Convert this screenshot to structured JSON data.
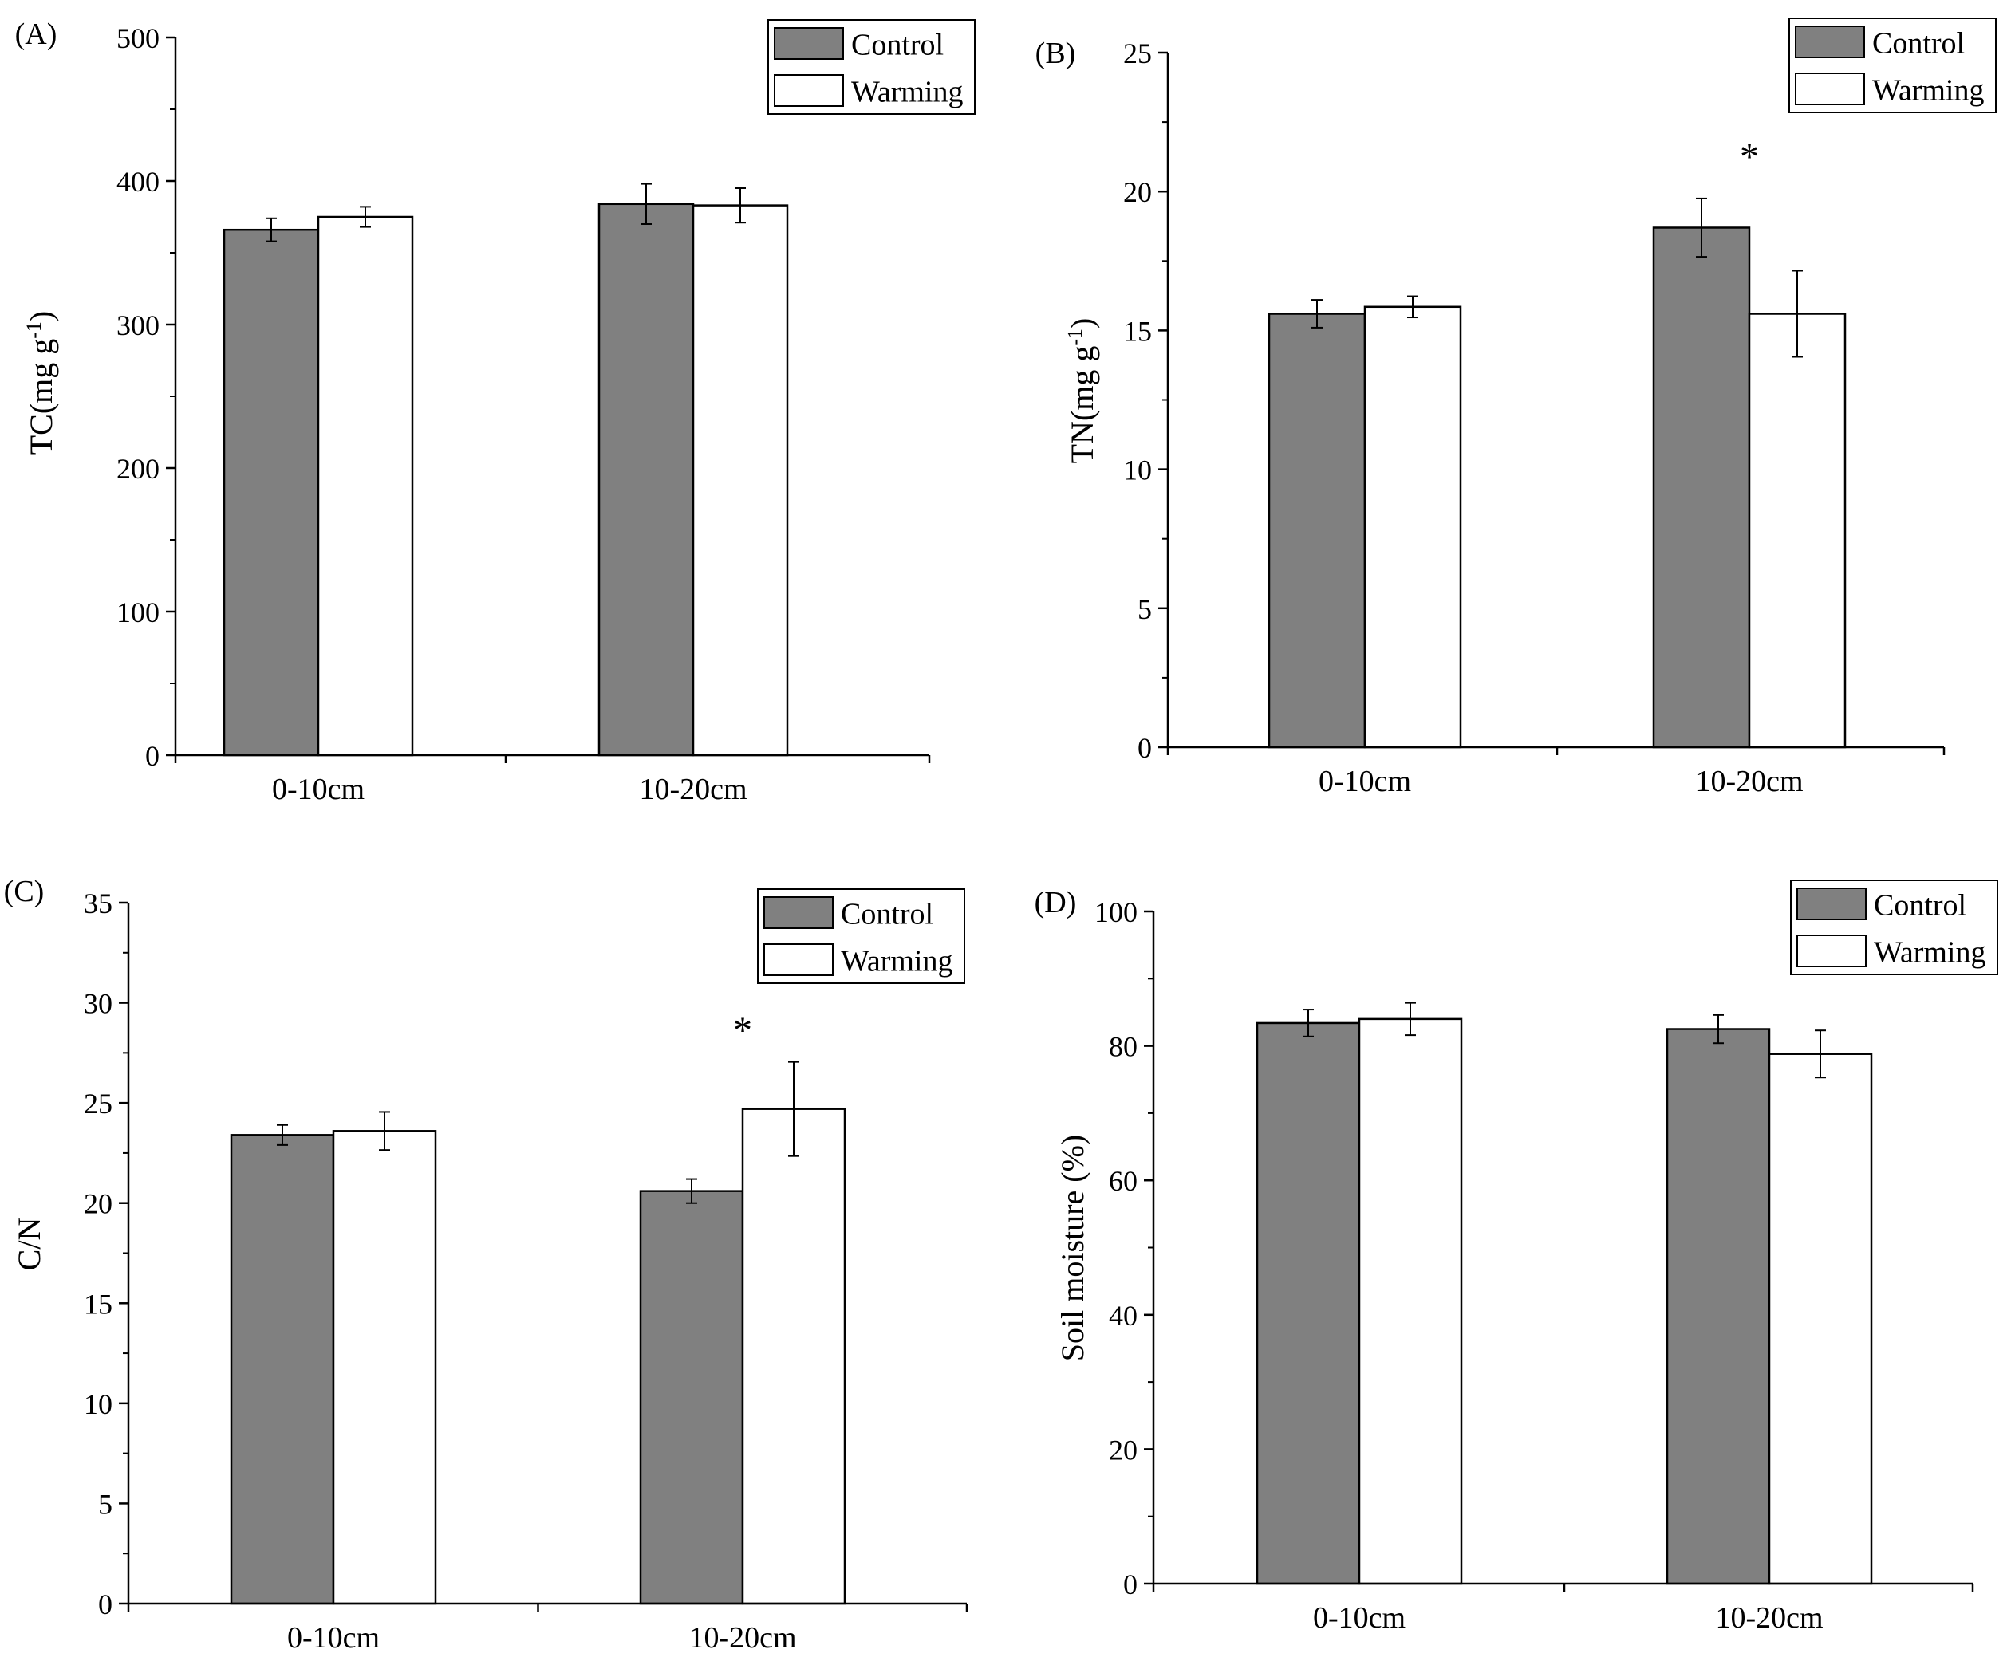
{
  "colors": {
    "control_fill": "#808080",
    "warming_fill": "#ffffff",
    "stroke": "#000000"
  },
  "chart_data": [
    {
      "type": "bar",
      "panel_label": "(A)",
      "ylabel_main": "TC(mg g",
      "ylabel_sup": "-1",
      "ylabel_close": ")",
      "categories": [
        "0-10cm",
        "10-20cm"
      ],
      "ylim": [
        0,
        500
      ],
      "yticks": [
        0,
        100,
        200,
        300,
        400,
        500
      ],
      "yticklabels": [
        "0",
        "100",
        "200",
        "300",
        "400",
        "500"
      ],
      "series": [
        {
          "name": "Control",
          "values": [
            366,
            384
          ],
          "errors": [
            8,
            14
          ]
        },
        {
          "name": "Warming",
          "values": [
            375,
            383
          ],
          "errors": [
            7,
            12
          ]
        }
      ],
      "annotations": [],
      "legend": {
        "position": "top-right",
        "labels": [
          "Control",
          "Warming"
        ]
      }
    },
    {
      "type": "bar",
      "panel_label": "(B)",
      "ylabel_main": "TN(mg g",
      "ylabel_sup": "-1",
      "ylabel_close": ")",
      "categories": [
        "0-10cm",
        "10-20cm"
      ],
      "ylim": [
        0,
        25
      ],
      "yticks": [
        0,
        5,
        10,
        15,
        20,
        25
      ],
      "yticklabels": [
        "0",
        "5",
        "10",
        "15",
        "20",
        "25"
      ],
      "series": [
        {
          "name": "Control",
          "values": [
            15.6,
            18.7
          ],
          "errors": [
            0.5,
            1.05
          ]
        },
        {
          "name": "Warming",
          "values": [
            15.85,
            15.6
          ],
          "errors": [
            0.38,
            1.55
          ]
        }
      ],
      "annotations": [
        {
          "text": "*",
          "category": "10-20cm",
          "y": 20.8
        }
      ],
      "legend": {
        "position": "top-right",
        "labels": [
          "Control",
          "Warming"
        ]
      }
    },
    {
      "type": "bar",
      "panel_label": "(C)",
      "ylabel_main": "C/N",
      "ylabel_sup": "",
      "ylabel_close": "",
      "categories": [
        "0-10cm",
        "10-20cm"
      ],
      "ylim": [
        0,
        35
      ],
      "yticks": [
        0,
        5,
        10,
        15,
        20,
        25,
        30,
        35
      ],
      "yticklabels": [
        "0",
        "5",
        "10",
        "15",
        "20",
        "25",
        "30",
        "35"
      ],
      "series": [
        {
          "name": "Control",
          "values": [
            23.4,
            20.6
          ],
          "errors": [
            0.5,
            0.6
          ]
        },
        {
          "name": "Warming",
          "values": [
            23.6,
            24.7
          ],
          "errors": [
            0.95,
            2.35
          ]
        }
      ],
      "annotations": [
        {
          "text": "*",
          "category": "10-20cm",
          "y": 28.0
        }
      ],
      "legend": {
        "position": "top-right",
        "labels": [
          "Control",
          "Warming"
        ]
      }
    },
    {
      "type": "bar",
      "panel_label": "(D)",
      "ylabel_main": "Soil moisture (%)",
      "ylabel_sup": "",
      "ylabel_close": "",
      "categories": [
        "0-10cm",
        "10-20cm"
      ],
      "ylim": [
        0,
        100
      ],
      "yticks": [
        0,
        20,
        40,
        60,
        80,
        100
      ],
      "yticklabels": [
        "0",
        "20",
        "40",
        "60",
        "80",
        "100"
      ],
      "series": [
        {
          "name": "Control",
          "values": [
            83.4,
            82.5
          ],
          "errors": [
            2.0,
            2.1
          ]
        },
        {
          "name": "Warming",
          "values": [
            84.0,
            78.8
          ],
          "errors": [
            2.4,
            3.5
          ]
        }
      ],
      "annotations": [],
      "legend": {
        "position": "top-right",
        "labels": [
          "Control",
          "Warming"
        ]
      }
    }
  ]
}
